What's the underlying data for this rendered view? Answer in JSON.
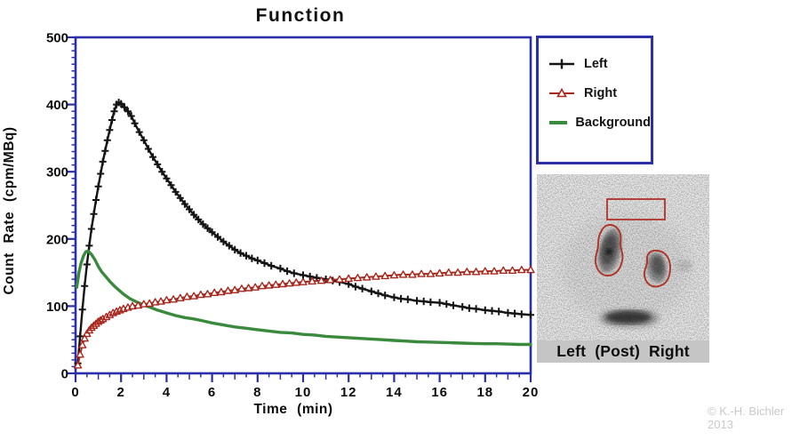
{
  "chart_data": {
    "type": "line",
    "title": "Function",
    "xlabel": "Time  (min)",
    "ylabel": "Count Rate (cpm/MBq)",
    "xlim": [
      0,
      20
    ],
    "ylim": [
      0,
      500
    ],
    "xticks": [
      0,
      2,
      4,
      6,
      8,
      10,
      12,
      14,
      16,
      18,
      20
    ],
    "yticks": [
      0,
      100,
      200,
      300,
      400,
      500
    ],
    "grid": false,
    "axis_color": "#2b2fa8",
    "legend_position": "outside-upper-right",
    "series": [
      {
        "name": "Left",
        "color": "#141414",
        "marker": "plus",
        "x": [
          0.1,
          0.2,
          0.3,
          0.4,
          0.5,
          0.6,
          0.7,
          0.8,
          0.9,
          1.0,
          1.1,
          1.2,
          1.3,
          1.4,
          1.5,
          1.6,
          1.7,
          1.8,
          1.9,
          2.0,
          2.15,
          2.3,
          2.45,
          2.6,
          2.8,
          3.0,
          3.2,
          3.4,
          3.6,
          3.8,
          4.0,
          4.2,
          4.4,
          4.6,
          4.8,
          5.0,
          5.2,
          5.4,
          5.6,
          5.8,
          6.0,
          6.25,
          6.5,
          6.75,
          7.0,
          7.25,
          7.5,
          7.75,
          8.0,
          8.3,
          8.6,
          9.0,
          9.3,
          9.6,
          10.0,
          10.3,
          10.6,
          11.0,
          11.3,
          11.6,
          12.0,
          12.3,
          12.6,
          13.0,
          13.3,
          13.6,
          14.0,
          14.3,
          14.6,
          15.0,
          15.3,
          15.6,
          16.0,
          16.3,
          16.6,
          17.0,
          17.3,
          17.6,
          18.0,
          18.3,
          18.6,
          19.0,
          19.3,
          19.6,
          20.0
        ],
        "y": [
          15,
          55,
          95,
          130,
          162,
          190,
          215,
          237,
          258,
          278,
          297,
          315,
          331,
          347,
          362,
          377,
          390,
          400,
          403,
          401,
          396,
          390,
          383,
          372,
          359,
          347,
          334,
          322,
          311,
          300,
          290,
          280,
          270,
          261,
          252,
          244,
          236,
          229,
          222,
          216,
          210,
          203,
          196,
          190,
          184,
          179,
          175,
          171,
          168,
          164,
          160,
          156,
          152,
          149,
          146,
          144,
          142,
          140,
          138,
          136,
          133,
          129,
          126,
          122,
          119,
          116,
          113,
          111,
          110,
          108,
          107,
          106,
          105,
          103,
          101,
          99,
          97,
          96,
          94,
          93,
          92,
          90,
          89,
          88,
          87
        ]
      },
      {
        "name": "Right",
        "color": "#a8261c",
        "marker": "triangle",
        "x": [
          0.1,
          0.2,
          0.3,
          0.4,
          0.5,
          0.6,
          0.7,
          0.8,
          0.9,
          1.0,
          1.1,
          1.2,
          1.35,
          1.5,
          1.65,
          1.8,
          1.95,
          2.1,
          2.3,
          2.5,
          2.75,
          3.0,
          3.25,
          3.5,
          3.75,
          4.0,
          4.3,
          4.6,
          4.9,
          5.2,
          5.5,
          5.8,
          6.1,
          6.4,
          6.7,
          7.0,
          7.3,
          7.6,
          7.9,
          8.2,
          8.5,
          8.8,
          9.1,
          9.4,
          9.7,
          10.0,
          10.4,
          10.8,
          11.2,
          11.6,
          12.0,
          12.4,
          12.8,
          13.2,
          13.6,
          14.0,
          14.4,
          14.8,
          15.2,
          15.6,
          16.0,
          16.4,
          16.8,
          17.2,
          17.6,
          18.0,
          18.4,
          18.8,
          19.2,
          19.6,
          20.0
        ],
        "y": [
          12,
          28,
          42,
          52,
          59,
          64,
          68,
          71,
          74,
          77,
          79,
          81,
          84,
          87,
          90,
          92,
          94,
          96,
          98,
          100,
          101,
          103,
          104,
          106,
          107,
          109,
          110,
          112,
          114,
          115,
          117,
          118,
          120,
          121,
          123,
          124,
          126,
          127,
          128,
          130,
          131,
          132,
          133,
          134,
          135,
          136,
          137,
          138,
          139,
          140,
          141,
          142,
          143,
          144,
          145,
          146,
          147,
          147,
          148,
          148,
          149,
          150,
          150,
          151,
          151,
          152,
          152,
          153,
          153,
          154,
          154
        ]
      },
      {
        "name": "Background",
        "color": "#3a8a3e",
        "marker": "none",
        "x": [
          0.05,
          0.15,
          0.25,
          0.35,
          0.45,
          0.55,
          0.7,
          0.85,
          1.0,
          1.15,
          1.3,
          1.5,
          1.7,
          1.9,
          2.1,
          2.4,
          2.7,
          3.0,
          3.3,
          3.6,
          4.0,
          4.4,
          4.8,
          5.2,
          5.6,
          6.0,
          6.5,
          7.0,
          7.5,
          8.0,
          8.5,
          9.0,
          9.5,
          10.0,
          10.5,
          11.0,
          11.5,
          12.0,
          12.5,
          13.0,
          13.5,
          14.0,
          14.5,
          15.0,
          15.5,
          16.0,
          16.5,
          17.0,
          17.5,
          18.0,
          18.5,
          19.0,
          19.5,
          20.0
        ],
        "y": [
          128,
          150,
          165,
          175,
          181,
          182,
          177,
          169,
          159,
          151,
          145,
          137,
          130,
          124,
          118,
          111,
          106,
          102,
          98,
          94,
          90,
          86,
          83,
          81,
          78,
          75,
          72,
          69,
          67,
          65,
          63,
          61,
          60,
          58,
          57,
          55,
          54,
          53,
          52,
          51,
          50,
          49,
          48,
          47,
          46.5,
          46,
          45.5,
          45,
          44.5,
          44,
          44,
          43.5,
          43,
          43
        ]
      }
    ]
  },
  "scan": {
    "caption": "Left (Post) Right",
    "roi_color": "#b03328"
  },
  "copyright": {
    "line1": "© K.-H. Bichler",
    "line2": "2013"
  }
}
